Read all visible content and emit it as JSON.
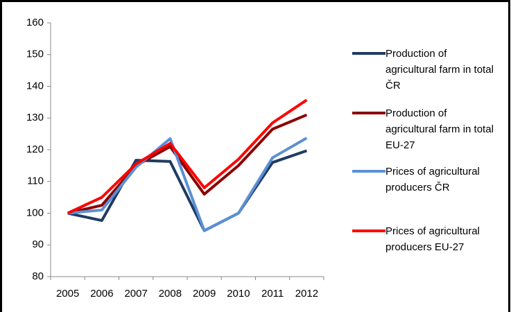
{
  "chart_data": {
    "type": "line",
    "categories": [
      "2005",
      "2006",
      "2007",
      "2008",
      "2009",
      "2010",
      "2011",
      "2012"
    ],
    "series": [
      {
        "name": "Production of agricultural farm in total ČR",
        "color": "#1f3b63",
        "values": [
          100,
          97.7,
          116.7,
          116.3,
          94.5,
          100,
          116,
          119.7
        ]
      },
      {
        "name": "Production of agricultural farm in total EU-27",
        "color": "#8b0000",
        "values": [
          100,
          102.5,
          115,
          121,
          106,
          115,
          126.5,
          131
        ]
      },
      {
        "name": "Prices of agricultural producers ČR",
        "color": "#5b8fd6",
        "values": [
          100,
          101,
          114.5,
          123.5,
          94.5,
          100,
          117.5,
          123.7
        ]
      },
      {
        "name": "Prices of agricultural producers EU-27",
        "color": "#ff0000",
        "values": [
          100,
          105,
          115.5,
          122,
          108,
          117,
          128.5,
          135.7
        ]
      }
    ],
    "ylim": [
      80,
      160
    ],
    "yticks": [
      80,
      90,
      100,
      110,
      120,
      130,
      140,
      150,
      160
    ],
    "grid": false,
    "legend": "right"
  }
}
